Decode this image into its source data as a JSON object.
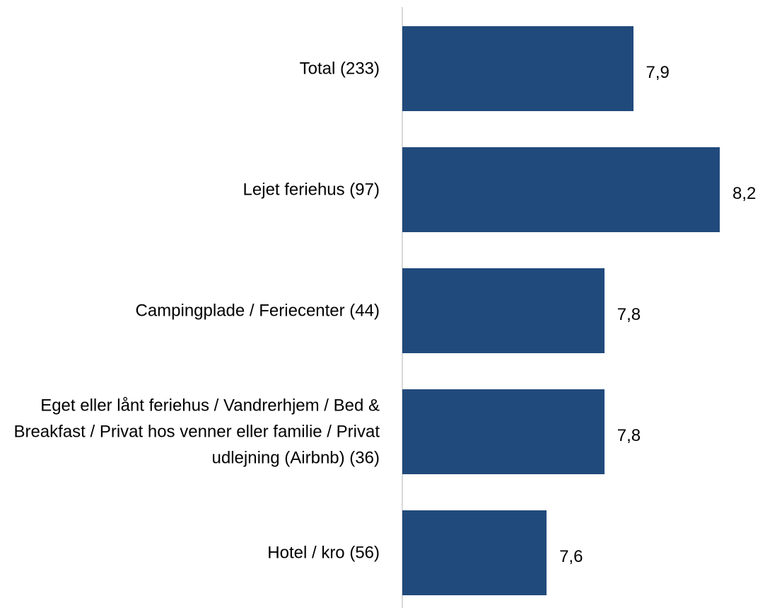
{
  "chart_data": {
    "type": "barh",
    "categories": [
      "Total (233)",
      "Lejet feriehus (97)",
      "Campingplade / Feriecenter (44)",
      "Eget eller lånt feriehus / Vandrerhjem / Bed & Breakfast / Privat hos venner eller familie / Privat udlejning (Airbnb) (36)",
      "Hotel / kro (56)"
    ],
    "values": [
      7.9,
      8.2,
      7.8,
      7.8,
      7.6
    ],
    "value_labels": [
      "7,9",
      "8,2",
      "7,8",
      "7,8",
      "7,6"
    ],
    "color": "#214a7c",
    "xlim": [
      7.1,
      8.2
    ]
  }
}
